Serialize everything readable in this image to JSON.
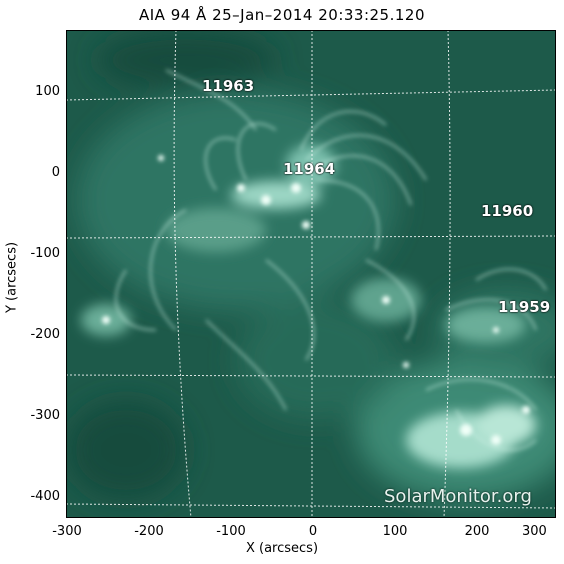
{
  "title": "AIA 94 Å 25–Jan–2014 20:33:25.120",
  "axes": {
    "xlabel": "X (arcsecs)",
    "ylabel": "Y (arcsecs)",
    "xticks": [
      "-300",
      "-200",
      "-100",
      "0",
      "100",
      "200",
      "300"
    ],
    "yticks": [
      "100",
      "0",
      "-100",
      "-200",
      "-300",
      "-400"
    ]
  },
  "active_regions": [
    "11963",
    "11964",
    "11960",
    "11959"
  ],
  "credit": "SolarMonitor.org",
  "colors": {
    "image_base": "#1d5a4a",
    "highlight": "#e9fff5"
  }
}
